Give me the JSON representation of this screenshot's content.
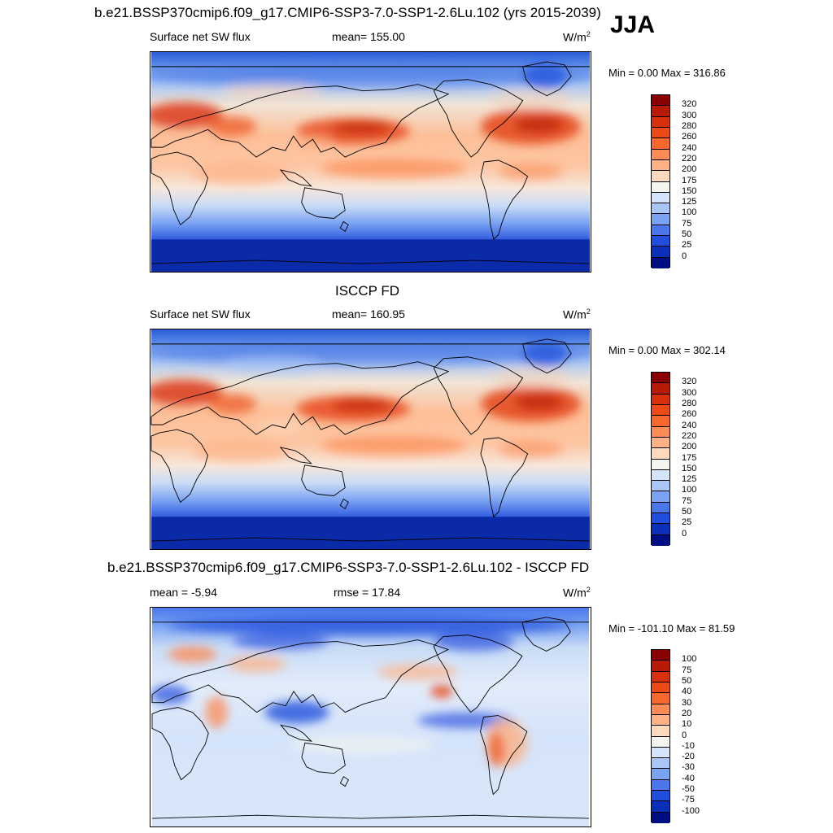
{
  "season": "JJA",
  "colors": {
    "ocean_base_top": "#2a5cd8",
    "outline": "#000000"
  },
  "chart_data": [
    {
      "type": "heatmap",
      "title": "b.e21.BSSP370cmip6.f09_g17.CMIP6-SSP3-7.0-SSP1-2.6Lu.102 (yrs 2015-2039)",
      "left_label": "Surface net SW flux",
      "center_label": "mean= 155.00",
      "units": "W/m",
      "units_sup": "2",
      "minmax": "Min =   0.00 Max = 316.86",
      "min": 0.0,
      "max": 316.86,
      "colorbar_ticks": [
        "320",
        "300",
        "280",
        "260",
        "240",
        "220",
        "200",
        "175",
        "150",
        "125",
        "100",
        "75",
        "50",
        "25",
        "0"
      ],
      "colorbar_colors": [
        "#8b0000",
        "#b81a06",
        "#d9300c",
        "#ee4a18",
        "#f7682e",
        "#fc8c56",
        "#fdb286",
        "#fdd9bd",
        "#f5f5f0",
        "#d4e4fa",
        "#a8c6f6",
        "#7aa2f2",
        "#4a78ec",
        "#1f4fdc",
        "#0a2fb8",
        "#000e84"
      ]
    },
    {
      "type": "heatmap",
      "title": "ISCCP FD",
      "left_label": "Surface net SW flux",
      "center_label": "mean= 160.95",
      "units": "W/m",
      "units_sup": "2",
      "minmax": "Min =   0.00 Max = 302.14",
      "min": 0.0,
      "max": 302.14,
      "colorbar_ticks": [
        "320",
        "300",
        "280",
        "260",
        "240",
        "220",
        "200",
        "175",
        "150",
        "125",
        "100",
        "75",
        "50",
        "25",
        "0"
      ],
      "colorbar_colors": [
        "#8b0000",
        "#b81a06",
        "#d9300c",
        "#ee4a18",
        "#f7682e",
        "#fc8c56",
        "#fdb286",
        "#fdd9bd",
        "#f5f5f0",
        "#d4e4fa",
        "#a8c6f6",
        "#7aa2f2",
        "#4a78ec",
        "#1f4fdc",
        "#0a2fb8",
        "#000e84"
      ]
    },
    {
      "type": "heatmap",
      "title": "b.e21.BSSP370cmip6.f09_g17.CMIP6-SSP3-7.0-SSP1-2.6Lu.102 - ISCCP FD",
      "left_label": "mean =  -5.94",
      "center_label": "rmse =  17.84",
      "units": "W/m",
      "units_sup": "2",
      "minmax": "Min = -101.10 Max =  81.59",
      "min": -101.1,
      "max": 81.59,
      "colorbar_ticks": [
        "100",
        "75",
        "50",
        "40",
        "30",
        "20",
        "10",
        "0",
        "-10",
        "-20",
        "-30",
        "-40",
        "-50",
        "-75",
        "-100"
      ],
      "colorbar_colors": [
        "#8b0000",
        "#b81a06",
        "#d9300c",
        "#ee4a18",
        "#f7682e",
        "#fc8c56",
        "#fdb286",
        "#fdd9bd",
        "#f5f5f0",
        "#d4e4fa",
        "#a8c6f6",
        "#7aa2f2",
        "#4a78ec",
        "#1f4fdc",
        "#0a2fb8",
        "#000e84"
      ]
    }
  ]
}
